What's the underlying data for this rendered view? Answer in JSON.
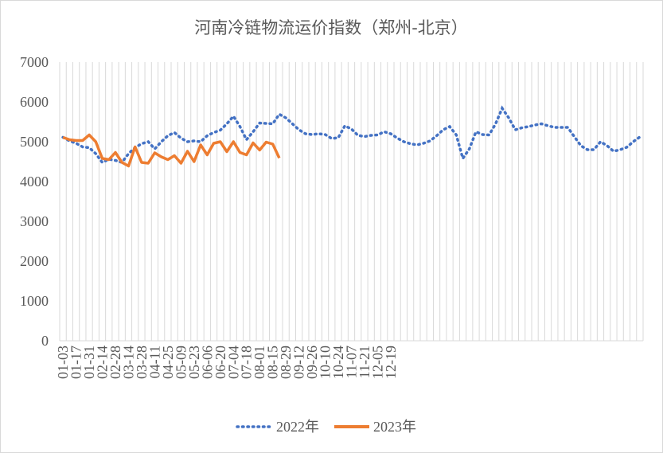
{
  "chart_data": {
    "type": "line",
    "title": "河南冷链物流运价指数（郑州-北京）",
    "xlabel": "",
    "ylabel": "",
    "ylim": [
      0,
      7000
    ],
    "yticks": [
      "0",
      "1000",
      "2000",
      "3000",
      "4000",
      "5000",
      "6000",
      "7000"
    ],
    "grid": "vertical",
    "legend": "bottom",
    "x_tick_labels": [
      "01-03",
      "01-17",
      "01-31",
      "02-14",
      "02-28",
      "03-14",
      "03-28",
      "04-11",
      "04-25",
      "05-09",
      "05-23",
      "06-06",
      "06-20",
      "07-04",
      "07-18",
      "08-01",
      "08-15",
      "08-29",
      "09-12",
      "09-26",
      "10-10",
      "10-24",
      "11-07",
      "11-21",
      "12-05",
      "12-19"
    ],
    "series": [
      {
        "name": "2022年",
        "style": "dotted",
        "color": "#4472c4",
        "values": [
          5110,
          5020,
          4960,
          4870,
          4850,
          4700,
          4480,
          4560,
          4530,
          4480,
          4700,
          4850,
          4950,
          5000,
          4820,
          5000,
          5150,
          5230,
          5090,
          5000,
          5020,
          5000,
          5150,
          5230,
          5290,
          5450,
          5640,
          5380,
          5050,
          5250,
          5470,
          5460,
          5450,
          5690,
          5600,
          5450,
          5300,
          5200,
          5180,
          5200,
          5180,
          5080,
          5100,
          5400,
          5320,
          5160,
          5130,
          5160,
          5170,
          5250,
          5200,
          5090,
          5000,
          4950,
          4920,
          4960,
          5020,
          5150,
          5300,
          5380,
          5170,
          4580,
          4820,
          5250,
          5180,
          5170,
          5450,
          5840,
          5600,
          5300,
          5350,
          5380,
          5420,
          5450,
          5400,
          5360,
          5360,
          5360,
          5130,
          4900,
          4800,
          4800,
          5000,
          4900,
          4760,
          4800,
          4860,
          5000,
          5120
        ]
      },
      {
        "name": "2023年",
        "style": "solid",
        "color": "#ed7d31",
        "values": [
          5110,
          5050,
          5030,
          5030,
          5170,
          5000,
          4580,
          4550,
          4730,
          4480,
          4390,
          4870,
          4480,
          4460,
          4720,
          4620,
          4550,
          4650,
          4460,
          4760,
          4500,
          4920,
          4670,
          4960,
          5000,
          4750,
          5000,
          4730,
          4670,
          4970,
          4790,
          4990,
          4940,
          4590
        ]
      }
    ]
  }
}
